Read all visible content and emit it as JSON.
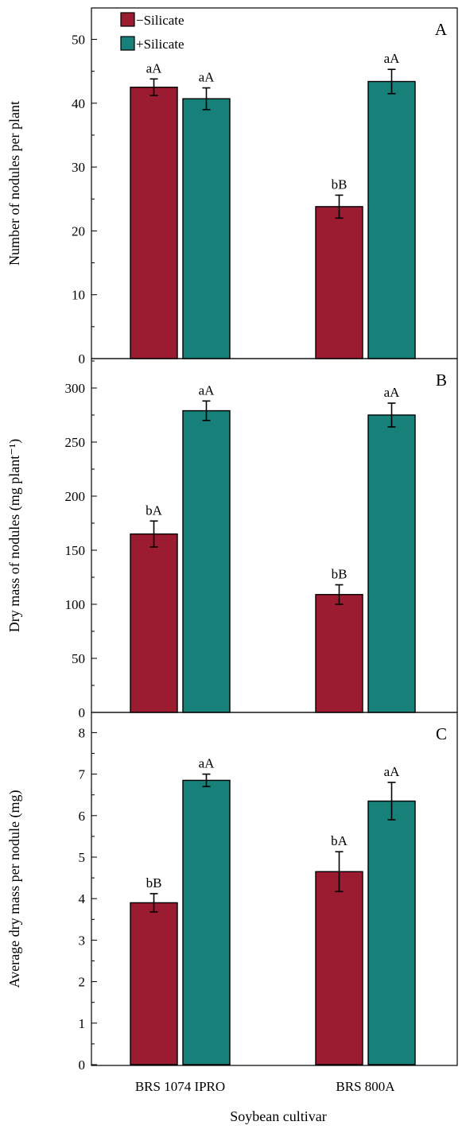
{
  "figure": {
    "xlabel": "Soybean cultivar",
    "legend_position": "top-left"
  },
  "chart_data": [
    {
      "type": "bar",
      "panel": "A",
      "ylabel": "Number of nodules per plant",
      "categories": [
        "BRS 1074 IPRO",
        "BRS 800A"
      ],
      "ylim": [
        0,
        55
      ],
      "yticks": [
        0,
        10,
        20,
        30,
        40,
        50
      ],
      "series": [
        {
          "name": "−Silicate",
          "color": "#9b1b30",
          "values": [
            42.5,
            23.8
          ],
          "errors": [
            1.3,
            1.8
          ],
          "labels": [
            "aA",
            "bB"
          ]
        },
        {
          "name": "+Silicate",
          "color": "#168079",
          "values": [
            40.7,
            43.4
          ],
          "errors": [
            1.7,
            1.9
          ],
          "labels": [
            "aA",
            "aA"
          ]
        }
      ],
      "grid": false
    },
    {
      "type": "bar",
      "panel": "B",
      "ylabel": "Dry mass of nodules (mg plant⁻¹)",
      "categories": [
        "BRS 1074 IPRO",
        "BRS 800A"
      ],
      "ylim": [
        0,
        325
      ],
      "yticks": [
        0,
        50,
        100,
        150,
        200,
        250,
        300
      ],
      "series": [
        {
          "name": "−Silicate",
          "color": "#9b1b30",
          "values": [
            165,
            109
          ],
          "errors": [
            12,
            9
          ],
          "labels": [
            "bA",
            "bB"
          ]
        },
        {
          "name": "+Silicate",
          "color": "#168079",
          "values": [
            279,
            275
          ],
          "errors": [
            9,
            11
          ],
          "labels": [
            "aA",
            "aA"
          ]
        }
      ],
      "grid": false
    },
    {
      "type": "bar",
      "panel": "C",
      "ylabel": "Average  dry mass per nodule  (mg)",
      "categories": [
        "BRS 1074 IPRO",
        "BRS 800A"
      ],
      "ylim": [
        0,
        8.4
      ],
      "yticks": [
        0,
        1,
        2,
        3,
        4,
        5,
        6,
        7,
        8
      ],
      "series": [
        {
          "name": "−Silicate",
          "color": "#9b1b30",
          "values": [
            3.9,
            4.65
          ],
          "errors": [
            0.22,
            0.48
          ],
          "labels": [
            "bB",
            "bA"
          ]
        },
        {
          "name": "+Silicate",
          "color": "#168079",
          "values": [
            6.85,
            6.35
          ],
          "errors": [
            0.15,
            0.45
          ],
          "labels": [
            "aA",
            "aA"
          ]
        }
      ],
      "grid": false
    }
  ]
}
